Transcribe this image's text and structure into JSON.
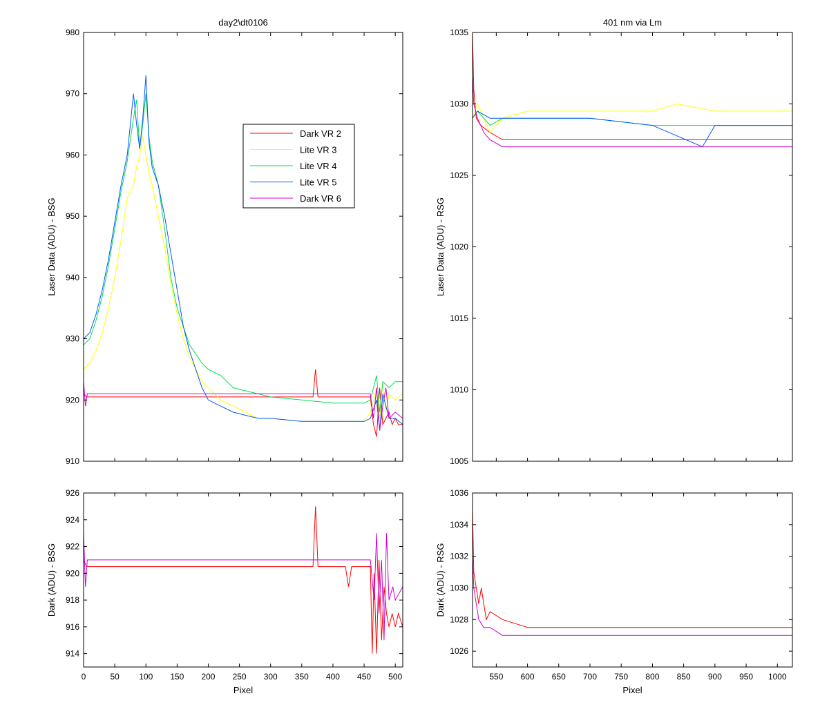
{
  "chart_data": [
    {
      "id": "ul",
      "type": "line",
      "title": "day2\\dt0106",
      "xlabel": "",
      "ylabel": "Laser Data (ADU) - BSG",
      "xlim": [
        0,
        512
      ],
      "ylim": [
        910,
        980
      ],
      "xticks": [
        0,
        50,
        100,
        150,
        200,
        250,
        300,
        350,
        400,
        450,
        500
      ],
      "xtick_labels_visible": false,
      "yticks": [
        910,
        920,
        930,
        940,
        950,
        960,
        970,
        980
      ],
      "legend": {
        "position": "upper-right-inset"
      },
      "series": [
        {
          "name": "Dark VR 2",
          "color": "#ff0000",
          "x": [
            0,
            5,
            100,
            200,
            300,
            360,
            368,
            372,
            376,
            380,
            440,
            460,
            465,
            470,
            475,
            480,
            485,
            490,
            495,
            500,
            505,
            512
          ],
          "y": [
            921,
            920.5,
            920.5,
            920.5,
            920.5,
            920.5,
            920.5,
            925,
            920.5,
            920.5,
            920.5,
            920.5,
            916,
            914,
            922,
            916,
            917,
            918,
            916,
            917,
            916,
            916
          ]
        },
        {
          "name": "Lite VR 3",
          "color": "#ffff00",
          "x": [
            0,
            10,
            20,
            30,
            40,
            50,
            60,
            70,
            80,
            85,
            90,
            95,
            100,
            105,
            110,
            120,
            130,
            140,
            150,
            160,
            170,
            180,
            190,
            200,
            220,
            240,
            260,
            280,
            300,
            350,
            400,
            450,
            460,
            470,
            475,
            480,
            485,
            490,
            500,
            512
          ],
          "y": [
            925,
            926,
            928,
            931,
            935,
            940,
            946,
            953,
            955,
            958,
            960,
            963,
            960,
            957,
            955,
            950,
            945,
            939,
            934,
            930,
            927,
            925,
            923,
            922,
            920,
            919,
            918,
            917,
            917,
            916.5,
            916.5,
            916.5,
            918,
            922,
            917,
            923,
            918,
            921,
            920,
            921
          ]
        },
        {
          "name": "Lite VR 4",
          "color": "#00dd55",
          "x": [
            0,
            10,
            20,
            30,
            40,
            50,
            60,
            70,
            80,
            85,
            90,
            95,
            100,
            105,
            110,
            120,
            130,
            140,
            150,
            160,
            170,
            180,
            190,
            200,
            220,
            240,
            260,
            280,
            300,
            350,
            400,
            450,
            460,
            470,
            475,
            480,
            490,
            500,
            512
          ],
          "y": [
            929,
            930,
            933,
            937,
            942,
            948,
            954,
            959,
            966,
            969,
            961,
            965,
            970,
            963,
            959,
            955,
            948,
            940,
            935,
            932,
            929,
            927.5,
            926,
            925,
            924,
            922,
            921.5,
            921,
            920.5,
            920,
            919.5,
            919.5,
            920,
            924,
            918,
            923,
            922,
            923,
            923
          ]
        },
        {
          "name": "Lite VR 5",
          "color": "#0055ff",
          "x": [
            0,
            10,
            20,
            30,
            40,
            50,
            60,
            70,
            80,
            85,
            90,
            95,
            100,
            105,
            110,
            120,
            130,
            140,
            150,
            160,
            170,
            180,
            190,
            200,
            220,
            240,
            260,
            280,
            300,
            350,
            400,
            450,
            460,
            470,
            475,
            480,
            490,
            500,
            512
          ],
          "y": [
            930,
            931,
            934,
            938,
            943,
            949,
            955,
            960,
            970,
            965,
            961,
            966,
            973,
            962,
            958,
            955,
            950,
            944,
            938,
            932,
            928,
            925,
            922,
            920,
            919,
            918,
            917.5,
            917,
            917,
            916.5,
            916.5,
            916.5,
            917,
            920,
            915,
            921,
            917,
            917,
            916
          ]
        },
        {
          "name": "Dark VR 6",
          "color": "#cc00cc",
          "x": [
            0,
            3,
            6,
            100,
            200,
            300,
            400,
            460,
            465,
            470,
            475,
            480,
            485,
            490,
            500,
            512
          ],
          "y": [
            923,
            919,
            921,
            921,
            921,
            921,
            921,
            921,
            917,
            922,
            915,
            919,
            922,
            917,
            918,
            917
          ]
        }
      ]
    },
    {
      "id": "ur",
      "type": "line",
      "title": "401 nm via Lm",
      "xlabel": "",
      "ylabel": "Laser Data (ADU) - RSG",
      "xlim": [
        512,
        1024
      ],
      "ylim": [
        1005,
        1035
      ],
      "xticks": [
        550,
        600,
        650,
        700,
        750,
        800,
        850,
        900,
        950,
        1000
      ],
      "xtick_labels_visible": false,
      "yticks": [
        1005,
        1010,
        1015,
        1020,
        1025,
        1030,
        1035
      ],
      "series": [
        {
          "name": "Dark VR 2",
          "color": "#ff0000",
          "x": [
            512,
            514,
            518,
            525,
            540,
            560,
            600,
            700,
            800,
            900,
            1000,
            1024
          ],
          "y": [
            1035,
            1031,
            1029,
            1028.5,
            1028,
            1027.5,
            1027.5,
            1027.5,
            1027.5,
            1027.5,
            1027.5,
            1027.5
          ]
        },
        {
          "name": "Lite VR 3",
          "color": "#ffff00",
          "x": [
            512,
            520,
            540,
            560,
            600,
            700,
            800,
            840,
            900,
            1000,
            1024
          ],
          "y": [
            1029,
            1030,
            1028,
            1029,
            1029.5,
            1029.5,
            1029.5,
            1030,
            1029.5,
            1029.5,
            1029.5
          ]
        },
        {
          "name": "Lite VR 4",
          "color": "#00dd55",
          "x": [
            512,
            520,
            540,
            560,
            600,
            700,
            800,
            900,
            1000,
            1024
          ],
          "y": [
            1029,
            1029.5,
            1028.5,
            1029,
            1029,
            1029,
            1028.5,
            1028.5,
            1028.5,
            1028.5
          ]
        },
        {
          "name": "Lite VR 5",
          "color": "#0055ff",
          "x": [
            512,
            520,
            540,
            560,
            600,
            700,
            800,
            880,
            900,
            1000,
            1024
          ],
          "y": [
            1029,
            1029.5,
            1029,
            1029,
            1029,
            1029,
            1028.5,
            1027,
            1028.5,
            1028.5,
            1028.5
          ]
        },
        {
          "name": "Dark VR 6",
          "color": "#cc00cc",
          "x": [
            512,
            514,
            520,
            530,
            540,
            560,
            600,
            700,
            800,
            900,
            1000,
            1024
          ],
          "y": [
            1032,
            1030,
            1029,
            1028,
            1027.5,
            1027,
            1027,
            1027,
            1027,
            1027,
            1027,
            1027
          ]
        }
      ]
    },
    {
      "id": "ll",
      "type": "line",
      "title": "",
      "xlabel": "Pixel",
      "ylabel": "Dark (ADU) - BSG",
      "xlim": [
        0,
        512
      ],
      "ylim": [
        913,
        926
      ],
      "xticks": [
        0,
        50,
        100,
        150,
        200,
        250,
        300,
        350,
        400,
        450,
        500
      ],
      "xtick_labels_visible": true,
      "yticks": [
        914,
        916,
        918,
        920,
        922,
        924,
        926
      ],
      "series": [
        {
          "name": "Dark VR 2",
          "color": "#ff0000",
          "x": [
            0,
            5,
            100,
            200,
            300,
            360,
            368,
            372,
            376,
            380,
            420,
            425,
            430,
            460,
            463,
            466,
            470,
            474,
            478,
            482,
            486,
            490,
            495,
            500,
            505,
            512
          ],
          "y": [
            921,
            920.5,
            920.5,
            920.5,
            920.5,
            920.5,
            920.5,
            925,
            920.5,
            920.5,
            920.5,
            919,
            920.5,
            920.5,
            914,
            920,
            914,
            921,
            915,
            919,
            917,
            916,
            917,
            916,
            917,
            916
          ]
        },
        {
          "name": "Dark VR 6",
          "color": "#cc00cc",
          "x": [
            0,
            3,
            6,
            100,
            200,
            300,
            400,
            460,
            466,
            470,
            474,
            478,
            482,
            486,
            490,
            496,
            500,
            512
          ],
          "y": [
            923,
            919,
            921,
            921,
            921,
            921,
            921,
            921,
            918,
            923,
            917,
            921,
            915,
            923,
            918,
            919,
            918,
            919
          ]
        }
      ]
    },
    {
      "id": "lr",
      "type": "line",
      "title": "",
      "xlabel": "Pixel",
      "ylabel": "Dark (ADU) - RSG",
      "xlim": [
        512,
        1024
      ],
      "ylim": [
        1025,
        1036
      ],
      "xticks": [
        550,
        600,
        650,
        700,
        750,
        800,
        850,
        900,
        950,
        1000
      ],
      "xtick_labels_visible": true,
      "yticks": [
        1026,
        1028,
        1030,
        1032,
        1034,
        1036
      ],
      "series": [
        {
          "name": "Dark VR 2",
          "color": "#ff0000",
          "x": [
            512,
            514,
            518,
            522,
            526,
            530,
            534,
            540,
            560,
            600,
            700,
            800,
            900,
            1000,
            1024
          ],
          "y": [
            1035,
            1031,
            1030,
            1029,
            1030,
            1029,
            1028,
            1028.5,
            1028,
            1027.5,
            1027.5,
            1027.5,
            1027.5,
            1027.5,
            1027.5
          ]
        },
        {
          "name": "Dark VR 6",
          "color": "#cc00cc",
          "x": [
            512,
            514,
            518,
            522,
            530,
            540,
            560,
            600,
            700,
            800,
            900,
            1000,
            1024
          ],
          "y": [
            1032,
            1030,
            1029,
            1028,
            1027.5,
            1027.5,
            1027,
            1027,
            1027,
            1027,
            1027,
            1027,
            1027
          ]
        }
      ]
    }
  ]
}
